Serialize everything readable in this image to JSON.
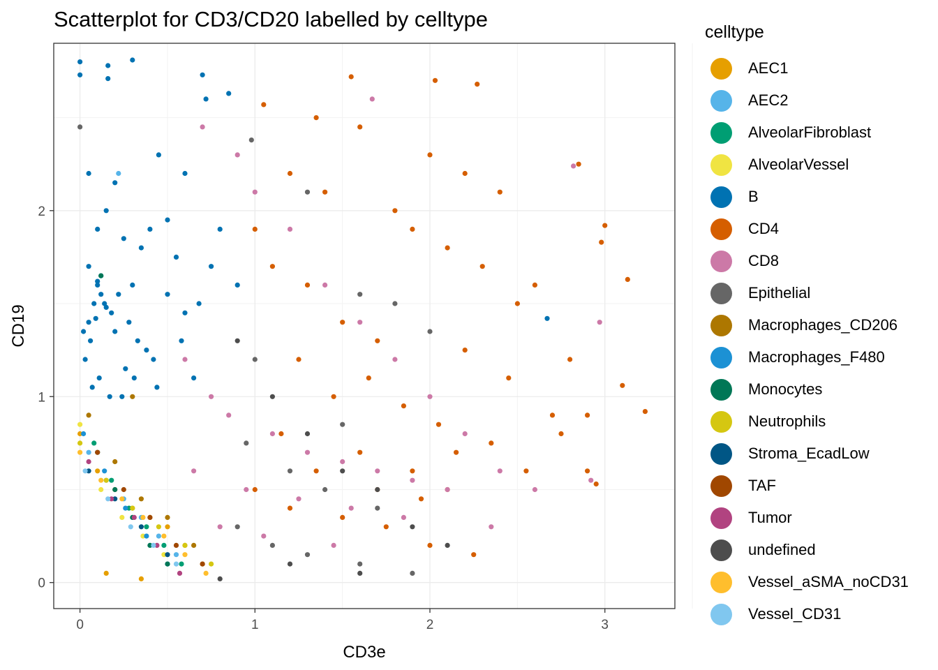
{
  "colors": {
    "AEC1": "#E69F00",
    "AEC2": "#56B4E9",
    "AlveolarFibroblast": "#009E73",
    "AlveolarVessel": "#F0E442",
    "B": "#0072B2",
    "CD4": "#D55E00",
    "CD8": "#CC79A7",
    "Epithelial": "#666666",
    "Macrophages_CD206": "#AD7700",
    "Macrophages_F480": "#1C91D4",
    "Monocytes": "#007756",
    "Neutrophils": "#D5C711",
    "Stroma_EcadLow": "#005685",
    "TAF": "#A04700",
    "Tumor": "#B14380",
    "undefined": "#4D4D4D",
    "Vessel_aSMA_noCD31": "#FFBE2D",
    "Vessel_CD31": "#80C7EF"
  },
  "chart_data": {
    "type": "scatter",
    "title": "Scatterplot for CD3/CD20 labelled by celltype",
    "xlabel": "CD3e",
    "ylabel": "CD19",
    "xlim": [
      -0.15,
      3.4
    ],
    "ylim": [
      -0.14,
      2.9
    ],
    "x_ticks": [
      "0",
      "1",
      "2",
      "3"
    ],
    "y_ticks": [
      "0",
      "1",
      "2"
    ],
    "grid": true,
    "legend_title": "celltype",
    "legend_position": "right",
    "legend": [
      "AEC1",
      "AEC2",
      "AlveolarFibroblast",
      "AlveolarVessel",
      "B",
      "CD4",
      "CD8",
      "Epithelial",
      "Macrophages_CD206",
      "Macrophages_F480",
      "Monocytes",
      "Neutrophils",
      "Stroma_EcadLow",
      "TAF",
      "Tumor",
      "undefined",
      "Vessel_aSMA_noCD31",
      "Vessel_CD31"
    ],
    "series": [
      {
        "name": "B",
        "x": [
          0.0,
          0.0,
          0.16,
          0.3,
          0.16,
          0.7,
          0.85,
          0.72,
          0.6,
          0.45,
          0.05,
          0.2,
          0.15,
          0.1,
          0.25,
          0.35,
          0.05,
          0.12,
          0.4,
          0.5,
          0.55,
          0.3,
          0.22,
          0.08,
          0.18,
          0.28,
          0.02,
          0.06,
          0.1,
          0.14,
          0.09,
          0.2,
          0.33,
          0.42,
          0.6,
          0.75,
          0.8,
          0.5,
          0.65,
          0.38,
          0.26,
          0.03,
          0.07,
          0.11,
          0.17,
          0.24,
          0.31,
          0.44,
          0.58,
          0.68,
          0.9,
          0.15,
          0.12,
          0.05,
          0.1,
          2.67
        ],
        "y": [
          2.8,
          2.73,
          2.78,
          2.81,
          2.71,
          2.73,
          2.63,
          2.6,
          2.2,
          2.3,
          2.2,
          2.15,
          2.0,
          1.9,
          1.85,
          1.8,
          1.7,
          1.65,
          1.9,
          1.95,
          1.75,
          1.6,
          1.55,
          1.5,
          1.45,
          1.4,
          1.35,
          1.3,
          1.6,
          1.5,
          1.42,
          1.35,
          1.3,
          1.2,
          1.45,
          1.7,
          1.9,
          1.55,
          1.1,
          1.25,
          1.15,
          1.2,
          1.05,
          1.1,
          1.0,
          1.0,
          1.1,
          1.05,
          1.3,
          1.5,
          1.6,
          1.48,
          1.55,
          1.4,
          1.62,
          1.42
        ]
      },
      {
        "name": "CD4",
        "x": [
          1.05,
          1.35,
          1.55,
          2.03,
          2.27,
          1.6,
          2.0,
          2.2,
          2.4,
          2.85,
          3.0,
          2.98,
          3.13,
          3.1,
          3.23,
          2.9,
          2.95,
          2.6,
          2.8,
          1.2,
          1.4,
          1.8,
          1.9,
          2.1,
          2.3,
          2.5,
          1.0,
          1.1,
          1.3,
          1.5,
          1.7,
          2.2,
          2.45,
          2.7,
          2.75,
          1.25,
          1.45,
          1.65,
          1.85,
          2.05,
          2.15,
          2.35,
          2.55,
          1.15,
          1.6,
          1.9,
          2.1,
          1.0,
          1.2,
          1.5,
          1.75,
          2.0,
          2.25,
          2.9,
          1.35,
          1.7,
          1.95
        ],
        "y": [
          2.57,
          2.5,
          2.72,
          2.7,
          2.68,
          2.45,
          2.3,
          2.2,
          2.1,
          2.25,
          1.92,
          1.83,
          1.63,
          1.06,
          0.92,
          0.9,
          0.53,
          1.6,
          1.2,
          2.2,
          2.1,
          2.0,
          1.9,
          1.8,
          1.7,
          1.5,
          1.9,
          1.7,
          1.6,
          1.4,
          1.3,
          1.25,
          1.1,
          0.9,
          0.8,
          1.2,
          1.0,
          1.1,
          0.95,
          0.85,
          0.7,
          0.75,
          0.6,
          0.8,
          0.7,
          0.6,
          0.5,
          0.5,
          0.4,
          0.35,
          0.3,
          0.2,
          0.15,
          0.6,
          0.6,
          0.5,
          0.45
        ]
      },
      {
        "name": "CD8",
        "x": [
          1.67,
          2.82,
          2.97,
          2.92,
          0.7,
          0.9,
          1.0,
          1.2,
          1.4,
          1.6,
          1.8,
          2.0,
          2.2,
          2.4,
          2.6,
          0.6,
          0.75,
          0.85,
          1.1,
          1.3,
          1.5,
          1.7,
          1.9,
          2.1,
          0.65,
          0.95,
          1.25,
          1.55,
          1.85,
          2.35,
          0.8,
          1.05,
          1.45
        ],
        "y": [
          2.6,
          2.24,
          1.4,
          0.55,
          2.45,
          2.3,
          2.1,
          1.9,
          1.6,
          1.4,
          1.2,
          1.0,
          0.8,
          0.6,
          0.5,
          1.2,
          1.0,
          0.9,
          0.8,
          0.7,
          0.65,
          0.6,
          0.55,
          0.5,
          0.6,
          0.5,
          0.45,
          0.4,
          0.35,
          0.3,
          0.3,
          0.25,
          0.2
        ]
      },
      {
        "name": "Epithelial",
        "x": [
          0.0,
          0.98,
          1.3,
          1.8,
          2.0,
          1.6,
          1.0,
          1.5,
          0.95,
          1.2,
          1.4,
          1.7,
          0.9,
          1.1,
          1.3,
          1.6,
          1.9
        ],
        "y": [
          2.45,
          2.38,
          2.1,
          1.5,
          1.35,
          1.55,
          1.2,
          0.85,
          0.75,
          0.6,
          0.5,
          0.4,
          0.3,
          0.2,
          0.15,
          0.1,
          0.05
        ]
      },
      {
        "name": "undefined",
        "x": [
          0.9,
          1.1,
          1.3,
          1.5,
          1.7,
          1.9,
          2.1,
          1.2,
          1.6,
          0.8
        ],
        "y": [
          1.3,
          1.0,
          0.8,
          0.6,
          0.5,
          0.3,
          0.2,
          0.1,
          0.05,
          0.02
        ]
      },
      {
        "name": "AEC1",
        "x": [
          0.0,
          0.1,
          0.2,
          0.3,
          0.4,
          0.5,
          0.6,
          0.7,
          0.15,
          0.35
        ],
        "y": [
          0.8,
          0.6,
          0.5,
          0.4,
          0.35,
          0.3,
          0.2,
          0.1,
          0.05,
          0.02
        ]
      },
      {
        "name": "AEC2",
        "x": [
          0.05,
          0.15,
          0.25,
          0.35,
          0.45,
          0.55,
          0.22
        ],
        "y": [
          0.7,
          0.55,
          0.45,
          0.35,
          0.25,
          0.15,
          2.2
        ]
      },
      {
        "name": "AlveolarFibroblast",
        "x": [
          0.08,
          0.18,
          0.28,
          0.38,
          0.48,
          0.58
        ],
        "y": [
          0.75,
          0.55,
          0.4,
          0.3,
          0.2,
          0.1
        ]
      },
      {
        "name": "AlveolarVessel",
        "x": [
          0.0,
          0.12,
          0.24,
          0.36,
          0.48
        ],
        "y": [
          0.85,
          0.5,
          0.35,
          0.25,
          0.15
        ]
      },
      {
        "name": "Macrophages_CD206",
        "x": [
          0.05,
          0.2,
          0.35,
          0.5,
          0.65,
          0.3
        ],
        "y": [
          0.9,
          0.65,
          0.45,
          0.35,
          0.2,
          1.0
        ]
      },
      {
        "name": "Macrophages_F480",
        "x": [
          0.02,
          0.14,
          0.26,
          0.38,
          0.5
        ],
        "y": [
          0.8,
          0.6,
          0.4,
          0.25,
          0.1
        ]
      },
      {
        "name": "Monocytes",
        "x": [
          0.1,
          0.2,
          0.3,
          0.4,
          0.5,
          0.12
        ],
        "y": [
          0.7,
          0.5,
          0.35,
          0.2,
          0.1,
          1.65
        ]
      },
      {
        "name": "Neutrophils",
        "x": [
          0.0,
          0.15,
          0.3,
          0.45,
          0.6,
          0.75
        ],
        "y": [
          0.75,
          0.55,
          0.4,
          0.3,
          0.2,
          0.1
        ]
      },
      {
        "name": "Stroma_EcadLow",
        "x": [
          0.05,
          0.2,
          0.35,
          0.5
        ],
        "y": [
          0.6,
          0.45,
          0.3,
          0.15
        ]
      },
      {
        "name": "TAF",
        "x": [
          0.1,
          0.25,
          0.4,
          0.55,
          0.7
        ],
        "y": [
          0.7,
          0.5,
          0.35,
          0.2,
          0.1
        ]
      },
      {
        "name": "Tumor",
        "x": [
          0.05,
          0.18,
          0.31,
          0.44,
          0.57
        ],
        "y": [
          0.65,
          0.45,
          0.35,
          0.2,
          0.05
        ]
      },
      {
        "name": "Vessel_aSMA_noCD31",
        "x": [
          0.0,
          0.12,
          0.24,
          0.36,
          0.48,
          0.6,
          0.72
        ],
        "y": [
          0.7,
          0.55,
          0.45,
          0.35,
          0.25,
          0.15,
          0.05
        ]
      },
      {
        "name": "Vessel_CD31",
        "x": [
          0.03,
          0.16,
          0.29,
          0.42,
          0.55
        ],
        "y": [
          0.6,
          0.45,
          0.3,
          0.2,
          0.1
        ]
      }
    ]
  }
}
